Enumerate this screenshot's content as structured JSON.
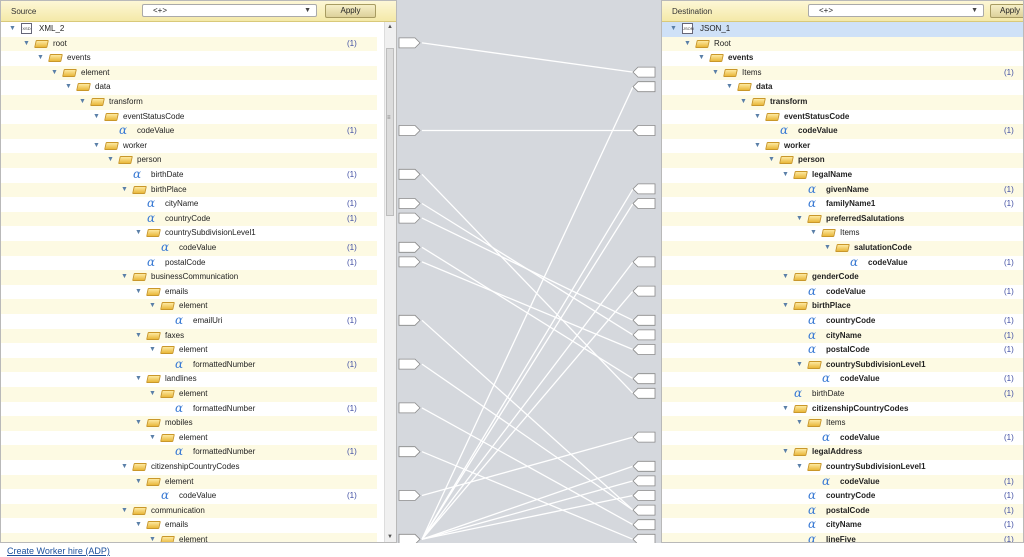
{
  "source": {
    "title": "Source",
    "dropdown_value": "<+>",
    "apply_label": "Apply",
    "rows": [
      {
        "label": "XML_2",
        "level": 0,
        "icon": "doc",
        "toggle": true
      },
      {
        "label": "root",
        "level": 1,
        "icon": "folder",
        "toggle": true,
        "count": "(1)"
      },
      {
        "label": "events",
        "level": 2,
        "icon": "folder",
        "toggle": true
      },
      {
        "label": "element",
        "level": 3,
        "icon": "folder",
        "toggle": true
      },
      {
        "label": "data",
        "level": 4,
        "icon": "folder",
        "toggle": true
      },
      {
        "label": "transform",
        "level": 5,
        "icon": "folder",
        "toggle": true
      },
      {
        "label": "eventStatusCode",
        "level": 6,
        "icon": "folder",
        "toggle": true
      },
      {
        "label": "codeValue",
        "level": 7,
        "icon": "alpha",
        "count": "(1)"
      },
      {
        "label": "worker",
        "level": 6,
        "icon": "folder",
        "toggle": true
      },
      {
        "label": "person",
        "level": 7,
        "icon": "folder",
        "toggle": true
      },
      {
        "label": "birthDate",
        "level": 8,
        "icon": "alpha",
        "count": "(1)"
      },
      {
        "label": "birthPlace",
        "level": 8,
        "icon": "folder",
        "toggle": true
      },
      {
        "label": "cityName",
        "level": 9,
        "icon": "alpha",
        "count": "(1)"
      },
      {
        "label": "countryCode",
        "level": 9,
        "icon": "alpha",
        "count": "(1)"
      },
      {
        "label": "countrySubdivisionLevel1",
        "level": 9,
        "icon": "folder",
        "toggle": true
      },
      {
        "label": "codeValue",
        "level": 10,
        "icon": "alpha",
        "count": "(1)"
      },
      {
        "label": "postalCode",
        "level": 9,
        "icon": "alpha",
        "count": "(1)"
      },
      {
        "label": "businessCommunication",
        "level": 8,
        "icon": "folder",
        "toggle": true
      },
      {
        "label": "emails",
        "level": 9,
        "icon": "folder",
        "toggle": true
      },
      {
        "label": "element",
        "level": 10,
        "icon": "folder",
        "toggle": true
      },
      {
        "label": "emailUri",
        "level": 11,
        "icon": "alpha",
        "count": "(1)"
      },
      {
        "label": "faxes",
        "level": 9,
        "icon": "folder",
        "toggle": true
      },
      {
        "label": "element",
        "level": 10,
        "icon": "folder",
        "toggle": true
      },
      {
        "label": "formattedNumber",
        "level": 11,
        "icon": "alpha",
        "count": "(1)"
      },
      {
        "label": "landlines",
        "level": 9,
        "icon": "folder",
        "toggle": true
      },
      {
        "label": "element",
        "level": 10,
        "icon": "folder",
        "toggle": true
      },
      {
        "label": "formattedNumber",
        "level": 11,
        "icon": "alpha",
        "count": "(1)"
      },
      {
        "label": "mobiles",
        "level": 9,
        "icon": "folder",
        "toggle": true
      },
      {
        "label": "element",
        "level": 10,
        "icon": "folder",
        "toggle": true
      },
      {
        "label": "formattedNumber",
        "level": 11,
        "icon": "alpha",
        "count": "(1)"
      },
      {
        "label": "citizenshipCountryCodes",
        "level": 8,
        "icon": "folder",
        "toggle": true
      },
      {
        "label": "element",
        "level": 9,
        "icon": "folder",
        "toggle": true
      },
      {
        "label": "codeValue",
        "level": 10,
        "icon": "alpha",
        "count": "(1)"
      },
      {
        "label": "communication",
        "level": 8,
        "icon": "folder",
        "toggle": true
      },
      {
        "label": "emails",
        "level": 9,
        "icon": "folder",
        "toggle": true
      },
      {
        "label": "element",
        "level": 10,
        "icon": "folder",
        "toggle": true
      }
    ]
  },
  "destination": {
    "title": "Destination",
    "dropdown_value": "<+>",
    "apply_label": "Apply",
    "rows": [
      {
        "label": "JSON_1",
        "level": 0,
        "icon": "doc",
        "toggle": true
      },
      {
        "label": "Root",
        "level": 1,
        "icon": "folder",
        "toggle": true
      },
      {
        "label": "events",
        "level": 2,
        "icon": "folder",
        "toggle": true,
        "bold": true
      },
      {
        "label": "Items",
        "level": 3,
        "icon": "folder",
        "toggle": true,
        "count": "(1)"
      },
      {
        "label": "data",
        "level": 4,
        "icon": "folder",
        "toggle": true,
        "bold": true
      },
      {
        "label": "transform",
        "level": 5,
        "icon": "folder",
        "toggle": true,
        "bold": true
      },
      {
        "label": "eventStatusCode",
        "level": 6,
        "icon": "folder",
        "toggle": true,
        "bold": true
      },
      {
        "label": "codeValue",
        "level": 7,
        "icon": "alpha",
        "count": "(1)",
        "bold": true
      },
      {
        "label": "worker",
        "level": 6,
        "icon": "folder",
        "toggle": true,
        "bold": true
      },
      {
        "label": "person",
        "level": 7,
        "icon": "folder",
        "toggle": true,
        "bold": true
      },
      {
        "label": "legalName",
        "level": 8,
        "icon": "folder",
        "toggle": true,
        "bold": true
      },
      {
        "label": "givenName",
        "level": 9,
        "icon": "alpha",
        "count": "(1)",
        "bold": true
      },
      {
        "label": "familyName1",
        "level": 9,
        "icon": "alpha",
        "count": "(1)",
        "bold": true
      },
      {
        "label": "preferredSalutations",
        "level": 9,
        "icon": "folder",
        "toggle": true,
        "bold": true
      },
      {
        "label": "Items",
        "level": 10,
        "icon": "folder",
        "toggle": true
      },
      {
        "label": "salutationCode",
        "level": 11,
        "icon": "folder",
        "toggle": true,
        "bold": true
      },
      {
        "label": "codeValue",
        "level": 12,
        "icon": "alpha",
        "count": "(1)",
        "bold": true
      },
      {
        "label": "genderCode",
        "level": 8,
        "icon": "folder",
        "toggle": true,
        "bold": true
      },
      {
        "label": "codeValue",
        "level": 9,
        "icon": "alpha",
        "count": "(1)",
        "bold": true
      },
      {
        "label": "birthPlace",
        "level": 8,
        "icon": "folder",
        "toggle": true,
        "bold": true
      },
      {
        "label": "countryCode",
        "level": 9,
        "icon": "alpha",
        "count": "(1)",
        "bold": true
      },
      {
        "label": "cityName",
        "level": 9,
        "icon": "alpha",
        "count": "(1)",
        "bold": true
      },
      {
        "label": "postalCode",
        "level": 9,
        "icon": "alpha",
        "count": "(1)",
        "bold": true
      },
      {
        "label": "countrySubdivisionLevel1",
        "level": 9,
        "icon": "folder",
        "toggle": true,
        "bold": true
      },
      {
        "label": "codeValue",
        "level": 10,
        "icon": "alpha",
        "count": "(1)",
        "bold": true
      },
      {
        "label": "birthDate",
        "level": 8,
        "icon": "alpha",
        "count": "(1)"
      },
      {
        "label": "citizenshipCountryCodes",
        "level": 8,
        "icon": "folder",
        "toggle": true,
        "bold": true
      },
      {
        "label": "Items",
        "level": 9,
        "icon": "folder",
        "toggle": true
      },
      {
        "label": "codeValue",
        "level": 10,
        "icon": "alpha",
        "count": "(1)",
        "bold": true
      },
      {
        "label": "legalAddress",
        "level": 8,
        "icon": "folder",
        "toggle": true,
        "bold": true
      },
      {
        "label": "countrySubdivisionLevel1",
        "level": 9,
        "icon": "folder",
        "toggle": true,
        "bold": true
      },
      {
        "label": "codeValue",
        "level": 10,
        "icon": "alpha",
        "count": "(1)",
        "bold": true
      },
      {
        "label": "countryCode",
        "level": 9,
        "icon": "alpha",
        "count": "(1)",
        "bold": true
      },
      {
        "label": "postalCode",
        "level": 9,
        "icon": "alpha",
        "count": "(1)",
        "bold": true
      },
      {
        "label": "cityName",
        "level": 9,
        "icon": "alpha",
        "count": "(1)",
        "bold": true
      },
      {
        "label": "lineFive",
        "level": 9,
        "icon": "alpha",
        "count": "(1)",
        "bold": true
      }
    ]
  },
  "connections": [
    [
      1,
      3
    ],
    [
      7,
      7
    ],
    [
      10,
      25
    ],
    [
      12,
      21
    ],
    [
      13,
      20
    ],
    [
      15,
      24
    ],
    [
      16,
      22
    ],
    [
      20,
      33
    ],
    [
      23,
      33
    ],
    [
      26,
      34
    ],
    [
      29,
      35
    ],
    [
      32,
      28
    ],
    [
      35,
      4
    ],
    [
      35,
      11
    ],
    [
      35,
      12
    ],
    [
      35,
      16
    ],
    [
      35,
      18
    ],
    [
      35,
      30
    ],
    [
      35,
      31
    ],
    [
      35,
      32
    ]
  ],
  "footer": {
    "link_label": "Create Worker hire (ADP)"
  },
  "icons": {
    "folder": "folder-icon",
    "alpha": "attribute-icon",
    "doc": "document-icon",
    "toggle": "expand-toggle-icon"
  }
}
